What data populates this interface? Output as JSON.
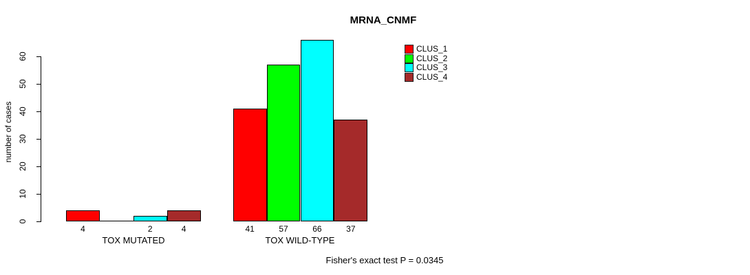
{
  "chart_data": {
    "type": "bar",
    "title": "MRNA_CNMF",
    "xlabel": "",
    "ylabel": "number of cases",
    "categories": [
      "TOX MUTATED",
      "TOX WILD-TYPE"
    ],
    "series": [
      {
        "name": "CLUS_1",
        "color": "#FF0000",
        "values": [
          4,
          41
        ],
        "bar_labels": [
          "4",
          "41"
        ]
      },
      {
        "name": "CLUS_2",
        "color": "#00FF00",
        "values": [
          0,
          57
        ],
        "bar_labels": [
          "",
          "57"
        ]
      },
      {
        "name": "CLUS_3",
        "color": "#00FFFF",
        "values": [
          2,
          66
        ],
        "bar_labels": [
          "2",
          "66"
        ]
      },
      {
        "name": "CLUS_4",
        "color": "#A52A2A",
        "values": [
          4,
          37
        ],
        "bar_labels": [
          "4",
          "37"
        ]
      }
    ],
    "ylim": [
      0,
      60
    ],
    "yticks": [
      0,
      10,
      20,
      30,
      40,
      50,
      60
    ],
    "grid": false,
    "legend_position": "top-right",
    "bar_border_color": "#000000",
    "annotation": "Fisher's exact test P = 0.0345"
  }
}
